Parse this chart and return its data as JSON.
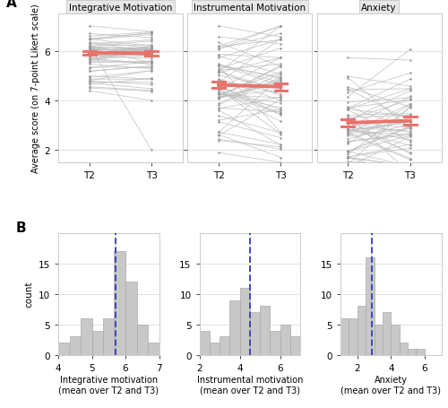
{
  "panel_titles": [
    "Integrative Motivation",
    "Instrumental Motivation",
    "Anxiety"
  ],
  "ylabel_top": "Average score (on 7-point Likert scale)",
  "integrative_mean_T2": 5.92,
  "integrative_mean_T3": 5.9,
  "integrative_se_T2": 0.07,
  "integrative_se_T3": 0.09,
  "instrumental_mean_T2": 4.62,
  "instrumental_mean_T3": 4.55,
  "instrumental_se_T2": 0.13,
  "instrumental_se_T3": 0.14,
  "anxiety_mean_T2": 3.1,
  "anxiety_mean_T3": 3.18,
  "anxiety_se_T2": 0.15,
  "anxiety_se_T3": 0.16,
  "hist_xlabels": [
    "Integrative motivation\n(mean over T2 and T3)",
    "Instrumental motivation\n(mean over T2 and T3)",
    "Anxiety\n(mean over T2 and T3)"
  ],
  "hist_ylabel": "count",
  "panel_label_A": "A",
  "panel_label_B": "B",
  "grey_line_color": "#BBBBBB",
  "grey_dot_color": "#999999",
  "red_color": "#E8736C",
  "blue_dashed_color": "#4444BB",
  "hist_bar_color": "#C8C8C8",
  "hist_bar_edge": "#AAAAAA",
  "bg_color": "#FFFFFF",
  "grid_color": "#DDDDDD",
  "panel_header_color": "#E8E8E8",
  "spine_color": "#CCCCCC"
}
